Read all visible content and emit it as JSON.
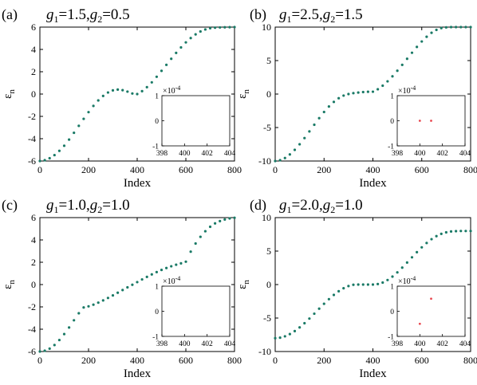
{
  "colors": {
    "series": "#1a7a66",
    "inset_points": "#e8474f",
    "axis": "#000000"
  },
  "panels": [
    {
      "label": "(a)",
      "title_parts": [
        [
          "g",
          "1"
        ],
        "=1.5,",
        [
          "g",
          "2"
        ],
        "=0.5"
      ],
      "xlabel": "Index",
      "ylabel": "ε",
      "ylabel_sub": "n",
      "xticks": [
        "0",
        "200",
        "400",
        "600",
        "800"
      ],
      "yticks": [
        "-6",
        "-4",
        "-2",
        "0",
        "2",
        "4",
        "6"
      ],
      "inset": {
        "exponent_label": "×10",
        "exponent_power": "-4",
        "yticks": [
          "1",
          "0",
          "-1"
        ],
        "xticks": [
          "398",
          "400",
          "402",
          "404"
        ]
      }
    },
    {
      "label": "(b)",
      "title_parts": [
        [
          "g",
          "1"
        ],
        "=2.5,",
        [
          "g",
          "2"
        ],
        "=1.5"
      ],
      "xlabel": "Index",
      "ylabel": "ε",
      "ylabel_sub": "n",
      "xticks": [
        "0",
        "200",
        "400",
        "600",
        "800"
      ],
      "yticks": [
        "-10",
        "-5",
        "0",
        "5",
        "10"
      ],
      "inset": {
        "exponent_label": "×10",
        "exponent_power": "-4",
        "yticks": [
          "1",
          "0",
          "-1"
        ],
        "xticks": [
          "398",
          "400",
          "402",
          "404"
        ]
      }
    },
    {
      "label": "(c)",
      "title_parts": [
        [
          "g",
          "1"
        ],
        "=1.0,",
        [
          "g",
          "2"
        ],
        "=1.0"
      ],
      "xlabel": "Index",
      "ylabel": "ε",
      "ylabel_sub": "n",
      "xticks": [
        "0",
        "200",
        "400",
        "600",
        "800"
      ],
      "yticks": [
        "-6",
        "-4",
        "-2",
        "0",
        "2",
        "4",
        "6"
      ],
      "inset": {
        "exponent_label": "×10",
        "exponent_power": "-4",
        "yticks": [
          "1",
          "0",
          "-1"
        ],
        "xticks": [
          "398",
          "400",
          "402",
          "404"
        ]
      }
    },
    {
      "label": "(d)",
      "title_parts": [
        [
          "g",
          "1"
        ],
        "=2.0,",
        [
          "g",
          "2"
        ],
        "=1.0"
      ],
      "xlabel": "Index",
      "ylabel": "ε",
      "ylabel_sub": "n",
      "xticks": [
        "0",
        "200",
        "400",
        "600",
        "800"
      ],
      "yticks": [
        "-10",
        "-5",
        "0",
        "5",
        "10"
      ],
      "inset": {
        "exponent_label": "×10",
        "exponent_power": "-4",
        "yticks": [
          "1",
          "0",
          "-1"
        ],
        "xticks": [
          "398",
          "400",
          "402",
          "404"
        ]
      }
    }
  ],
  "chart_data": [
    {
      "type": "scatter",
      "panel": "(a)",
      "xlim": [
        0,
        800
      ],
      "ylim": [
        -6,
        6
      ],
      "grid": false,
      "series": [
        {
          "x": [
            0,
            20,
            40,
            60,
            80,
            100,
            120,
            140,
            160,
            180,
            200,
            220,
            240,
            260,
            280,
            300,
            320,
            340,
            360,
            380,
            400,
            420,
            440,
            460,
            480,
            500,
            520,
            540,
            560,
            580,
            600,
            620,
            640,
            660,
            680,
            700,
            720,
            740,
            760,
            780,
            800
          ],
          "y": [
            -6.0,
            -5.93,
            -5.75,
            -5.47,
            -5.09,
            -4.63,
            -4.08,
            -3.47,
            -2.85,
            -2.22,
            -1.62,
            -1.06,
            -0.57,
            -0.17,
            0.14,
            0.33,
            0.4,
            0.35,
            0.22,
            0.05,
            0.0,
            0.26,
            0.62,
            1.05,
            1.55,
            2.08,
            2.62,
            3.16,
            3.69,
            4.18,
            4.63,
            5.02,
            5.35,
            5.61,
            5.79,
            5.9,
            5.95,
            5.97,
            5.98,
            5.99,
            6.0
          ]
        }
      ],
      "inset": {
        "xlim": [
          398,
          404
        ],
        "ylim": [
          -1,
          1
        ],
        "y_exponent": -4,
        "points": []
      }
    },
    {
      "type": "scatter",
      "panel": "(b)",
      "xlim": [
        0,
        800
      ],
      "ylim": [
        -10,
        10
      ],
      "grid": false,
      "series": [
        {
          "x": [
            0,
            20,
            40,
            60,
            80,
            100,
            120,
            140,
            160,
            180,
            200,
            220,
            240,
            260,
            280,
            300,
            320,
            340,
            360,
            380,
            400,
            420,
            440,
            460,
            480,
            500,
            520,
            540,
            560,
            580,
            600,
            620,
            640,
            660,
            680,
            700,
            720,
            740,
            760,
            780,
            800
          ],
          "y": [
            -10.0,
            -9.88,
            -9.55,
            -9.02,
            -8.33,
            -7.5,
            -6.57,
            -5.58,
            -4.58,
            -3.6,
            -2.68,
            -1.86,
            -1.17,
            -0.62,
            -0.23,
            0.0,
            0.14,
            0.23,
            0.3,
            0.34,
            0.35,
            0.72,
            1.25,
            1.9,
            2.65,
            3.48,
            4.36,
            5.27,
            6.17,
            7.04,
            7.85,
            8.56,
            9.15,
            9.58,
            9.85,
            9.96,
            10.0,
            10.0,
            10.0,
            10.0,
            10.0
          ]
        }
      ],
      "inset": {
        "xlim": [
          398,
          404
        ],
        "ylim": [
          -1,
          1
        ],
        "y_exponent": -4,
        "points": [
          {
            "x": 400.0,
            "y": 0.0
          },
          {
            "x": 401.0,
            "y": 0.0
          }
        ]
      }
    },
    {
      "type": "scatter",
      "panel": "(c)",
      "xlim": [
        0,
        800
      ],
      "ylim": [
        -6,
        6
      ],
      "grid": false,
      "series": [
        {
          "x": [
            0,
            20,
            40,
            60,
            80,
            100,
            120,
            140,
            160,
            180,
            200,
            220,
            240,
            260,
            280,
            300,
            320,
            340,
            360,
            380,
            400,
            420,
            440,
            460,
            480,
            500,
            520,
            540,
            560,
            580,
            600,
            620,
            640,
            660,
            680,
            700,
            720,
            740,
            760,
            780,
            800
          ],
          "y": [
            -6.0,
            -5.93,
            -5.74,
            -5.42,
            -4.97,
            -4.44,
            -3.85,
            -3.2,
            -2.57,
            -2.05,
            -1.95,
            -1.8,
            -1.62,
            -1.42,
            -1.2,
            -0.97,
            -0.73,
            -0.49,
            -0.25,
            -0.02,
            0.22,
            0.46,
            0.69,
            0.91,
            1.12,
            1.31,
            1.48,
            1.64,
            1.78,
            1.9,
            2.05,
            2.95,
            3.68,
            4.28,
            4.78,
            5.18,
            5.48,
            5.69,
            5.83,
            5.93,
            5.98
          ]
        }
      ],
      "inset": {
        "xlim": [
          398,
          404
        ],
        "ylim": [
          -1,
          1
        ],
        "y_exponent": -4,
        "points": []
      }
    },
    {
      "type": "scatter",
      "panel": "(d)",
      "xlim": [
        0,
        800
      ],
      "ylim": [
        -10,
        10
      ],
      "grid": false,
      "series": [
        {
          "x": [
            0,
            20,
            40,
            60,
            80,
            100,
            120,
            140,
            160,
            180,
            200,
            220,
            240,
            260,
            280,
            300,
            320,
            340,
            360,
            380,
            400,
            420,
            440,
            460,
            480,
            500,
            520,
            540,
            560,
            580,
            600,
            620,
            640,
            660,
            680,
            700,
            720,
            740,
            760,
            780,
            800
          ],
          "y": [
            -8.0,
            -7.93,
            -7.73,
            -7.4,
            -6.95,
            -6.4,
            -5.77,
            -5.08,
            -4.35,
            -3.6,
            -2.87,
            -2.18,
            -1.55,
            -1.0,
            -0.55,
            -0.22,
            -0.03,
            0.0,
            0.0,
            0.0,
            0.0,
            0.08,
            0.3,
            0.68,
            1.19,
            1.82,
            2.53,
            3.29,
            4.07,
            4.84,
            5.56,
            6.21,
            6.78,
            7.23,
            7.57,
            7.8,
            7.93,
            7.98,
            8.0,
            8.0,
            8.0
          ]
        }
      ],
      "inset": {
        "xlim": [
          398,
          404
        ],
        "ylim": [
          -1,
          1
        ],
        "y_exponent": -4,
        "points": [
          {
            "x": 400.0,
            "y": -0.5
          },
          {
            "x": 401.0,
            "y": 0.5
          }
        ]
      }
    }
  ]
}
